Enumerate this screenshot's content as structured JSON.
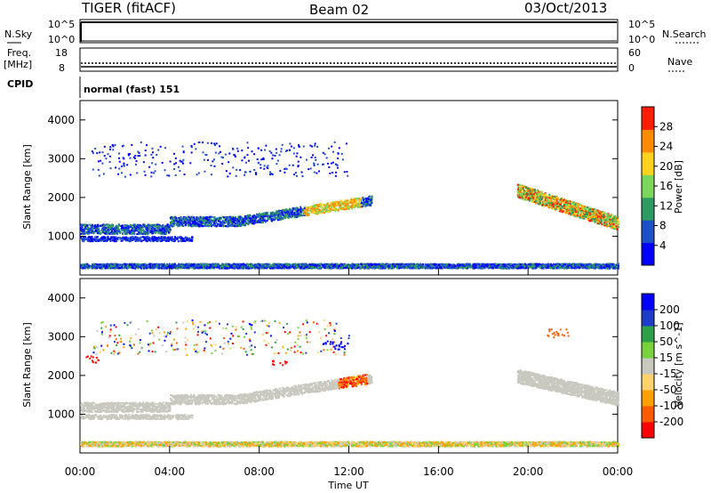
{
  "header": {
    "radar": "TIGER (fitACF)",
    "beam": "Beam 02",
    "date": "03/Oct/2013"
  },
  "panels": {
    "nsky": {
      "label": "N.Sky",
      "ticks": [
        "10^5",
        "10^0"
      ],
      "right_label": "N.Search",
      "right_ticks": [
        "10^5",
        "10^0"
      ]
    },
    "freq": {
      "label_top": "Freq.",
      "label_unit": "[MHz]",
      "ticks": [
        "18",
        "8"
      ],
      "right_label": "Nave",
      "right_ticks": [
        "60",
        "0"
      ]
    },
    "cpid": {
      "label": "CPID",
      "text": "normal (fast) 151"
    }
  },
  "chart_data": [
    {
      "type": "heatmap",
      "name": "power",
      "ylabel": "Slant Range [km]",
      "yticks": [
        "4000",
        "3000",
        "2000",
        "1000"
      ],
      "colorbar": {
        "label": "Power [dB]",
        "ticks": [
          "28",
          "24",
          "20",
          "16",
          "12",
          "8",
          "4"
        ],
        "colors": [
          "#0000ff",
          "#1e50c8",
          "#2e9b62",
          "#7bd65b",
          "#ffd21e",
          "#ff8c00",
          "#ff1e00"
        ]
      }
    },
    {
      "type": "heatmap",
      "name": "velocity",
      "ylabel": "Slant Range [km]",
      "yticks": [
        "4000",
        "3000",
        "2000",
        "1000"
      ],
      "colorbar": {
        "label": "Velocity [m s^-1]",
        "ticks": [
          "200",
          "100",
          "50",
          "15",
          "-15",
          "-50",
          "-100",
          "-200"
        ],
        "colors": [
          "#ff0000",
          "#ff5a00",
          "#ffa000",
          "#ffd26e",
          "#c8c8bf",
          "#78d23c",
          "#2ea04a",
          "#1e3cc8",
          "#0000ff"
        ]
      }
    }
  ],
  "x_axis": {
    "label": "Time UT",
    "ticks": [
      "00:00",
      "04:00",
      "08:00",
      "12:00",
      "16:00",
      "20:00",
      "00:00"
    ]
  }
}
